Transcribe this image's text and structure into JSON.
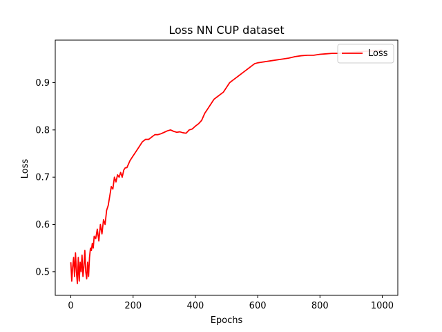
{
  "chart_data": {
    "type": "line",
    "title": "Loss NN CUP dataset",
    "xlabel": "Epochs",
    "ylabel": "Loss",
    "xlim": [
      -50,
      1050
    ],
    "ylim": [
      0.45,
      0.99
    ],
    "x_ticks": [
      0,
      200,
      400,
      600,
      800,
      1000
    ],
    "y_ticks": [
      0.5,
      0.6,
      0.7,
      0.8,
      0.9
    ],
    "x_tick_labels": [
      "0",
      "200",
      "400",
      "600",
      "800",
      "1000"
    ],
    "y_tick_labels": [
      "0.5",
      "0.6",
      "0.7",
      "0.8",
      "0.9"
    ],
    "grid": false,
    "legend": {
      "position": "top-right",
      "entries": [
        "Loss"
      ]
    },
    "series": [
      {
        "name": "Loss",
        "color": "#ff0000",
        "x": [
          0,
          3,
          6,
          9,
          12,
          15,
          18,
          21,
          24,
          27,
          30,
          33,
          36,
          39,
          42,
          45,
          48,
          51,
          54,
          57,
          60,
          63,
          66,
          69,
          72,
          75,
          80,
          85,
          90,
          95,
          100,
          105,
          110,
          115,
          120,
          125,
          130,
          135,
          140,
          145,
          150,
          155,
          160,
          165,
          170,
          175,
          180,
          190,
          200,
          210,
          220,
          230,
          240,
          250,
          260,
          270,
          280,
          290,
          300,
          310,
          320,
          330,
          340,
          350,
          360,
          370,
          380,
          390,
          400,
          410,
          420,
          430,
          440,
          450,
          460,
          470,
          480,
          490,
          500,
          510,
          520,
          530,
          540,
          550,
          560,
          570,
          580,
          590,
          600,
          610,
          620,
          630,
          640,
          660,
          680,
          700,
          720,
          740,
          760,
          780,
          800,
          820,
          840,
          860,
          880,
          900,
          920,
          940,
          960,
          980,
          1000
        ],
        "values": [
          0.52,
          0.48,
          0.51,
          0.53,
          0.49,
          0.54,
          0.5,
          0.475,
          0.53,
          0.48,
          0.52,
          0.5,
          0.535,
          0.49,
          0.51,
          0.545,
          0.5,
          0.485,
          0.52,
          0.49,
          0.53,
          0.55,
          0.545,
          0.56,
          0.55,
          0.575,
          0.57,
          0.59,
          0.565,
          0.6,
          0.58,
          0.61,
          0.6,
          0.63,
          0.64,
          0.66,
          0.68,
          0.675,
          0.7,
          0.69,
          0.705,
          0.7,
          0.71,
          0.7,
          0.715,
          0.72,
          0.72,
          0.735,
          0.745,
          0.755,
          0.765,
          0.775,
          0.78,
          0.78,
          0.785,
          0.79,
          0.79,
          0.792,
          0.795,
          0.798,
          0.8,
          0.797,
          0.795,
          0.796,
          0.794,
          0.793,
          0.8,
          0.802,
          0.808,
          0.813,
          0.82,
          0.835,
          0.845,
          0.855,
          0.865,
          0.87,
          0.875,
          0.88,
          0.89,
          0.9,
          0.905,
          0.91,
          0.915,
          0.92,
          0.925,
          0.93,
          0.935,
          0.94,
          0.942,
          0.943,
          0.944,
          0.945,
          0.946,
          0.948,
          0.95,
          0.952,
          0.955,
          0.957,
          0.958,
          0.958,
          0.96,
          0.961,
          0.962,
          0.962,
          0.963,
          0.964,
          0.965,
          0.966,
          0.967,
          0.968,
          0.969
        ]
      }
    ]
  }
}
